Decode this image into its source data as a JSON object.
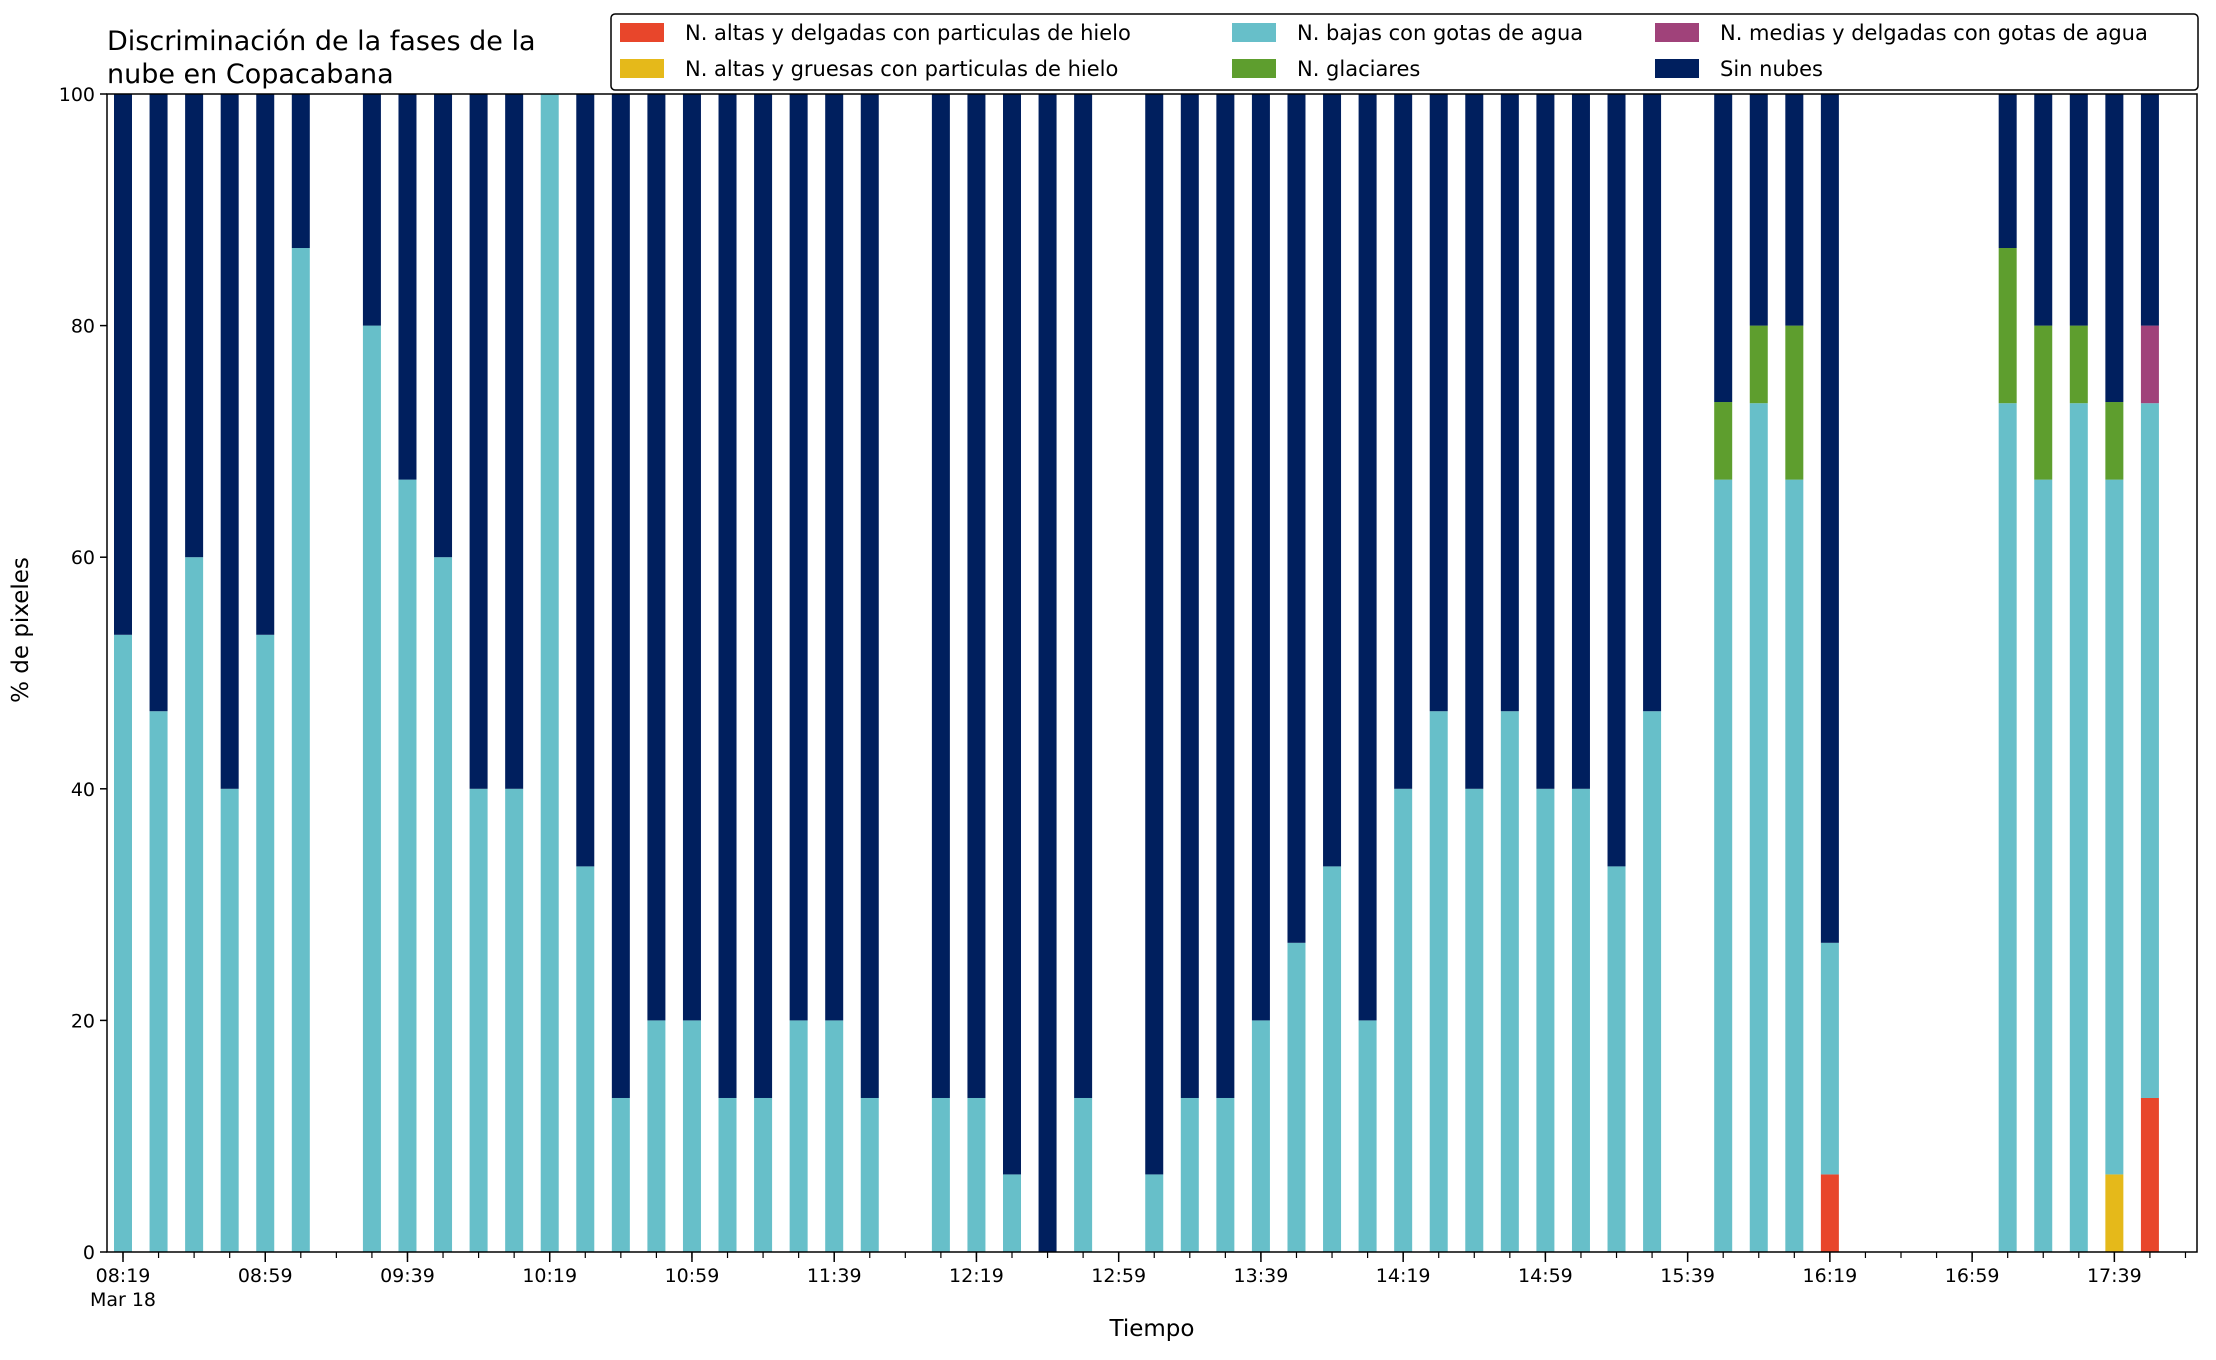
{
  "chart_data": {
    "type": "bar",
    "stacked": true,
    "title": "Discriminación de la fases de la\nnube en Copacabana",
    "xlabel": "Tiempo",
    "ylabel": "% de pixeles",
    "ylim": [
      0,
      100
    ],
    "yticks": [
      0,
      20,
      40,
      60,
      80,
      100
    ],
    "x_tick_labels": [
      "08:19",
      "08:59",
      "09:39",
      "10:19",
      "10:59",
      "11:39",
      "12:19",
      "12:59",
      "13:39",
      "14:19",
      "14:59",
      "15:39",
      "16:19",
      "16:59",
      "17:39"
    ],
    "x_date_label": "Mar 18",
    "x_start": "08:19",
    "x_end": "17:59",
    "bar_interval_minutes": 10,
    "legend_position": "top-right",
    "colors": {
      "hielo_delgadas": "#e8462b",
      "hielo_gruesas": "#e5b91a",
      "gotas_bajas": "#67bfc9",
      "glaciares": "#5e9e2e",
      "gotas_medias": "#a0427a",
      "sin_nubes": "#001f5e"
    },
    "legend": [
      {
        "key": "hielo_delgadas",
        "label": "N. altas y delgadas con particulas de hielo"
      },
      {
        "key": "hielo_gruesas",
        "label": "N. altas y gruesas con particulas de hielo"
      },
      {
        "key": "gotas_bajas",
        "label": "N. bajas con gotas de agua"
      },
      {
        "key": "glaciares",
        "label": "N. glaciares"
      },
      {
        "key": "gotas_medias",
        "label": "N. medias y delgadas con gotas de agua"
      },
      {
        "key": "sin_nubes",
        "label": "Sin nubes"
      }
    ],
    "series_order": [
      "hielo_delgadas",
      "hielo_gruesas",
      "gotas_bajas",
      "glaciares",
      "gotas_medias",
      "sin_nubes"
    ],
    "bars": [
      {
        "time": "08:19",
        "gotas_bajas": 53.3,
        "sin_nubes": 46.7
      },
      {
        "time": "08:29",
        "gotas_bajas": 46.7,
        "sin_nubes": 53.3
      },
      {
        "time": "08:39",
        "gotas_bajas": 60,
        "sin_nubes": 40
      },
      {
        "time": "08:49",
        "gotas_bajas": 40,
        "sin_nubes": 60
      },
      {
        "time": "08:59",
        "gotas_bajas": 53.3,
        "sin_nubes": 46.7
      },
      {
        "time": "09:09",
        "gotas_bajas": 86.7,
        "sin_nubes": 13.3
      },
      {
        "time": "09:29",
        "gotas_bajas": 80,
        "sin_nubes": 20
      },
      {
        "time": "09:39",
        "gotas_bajas": 66.7,
        "sin_nubes": 33.3
      },
      {
        "time": "09:49",
        "gotas_bajas": 60,
        "sin_nubes": 40
      },
      {
        "time": "09:59",
        "gotas_bajas": 40,
        "sin_nubes": 60
      },
      {
        "time": "10:09",
        "gotas_bajas": 40,
        "sin_nubes": 60
      },
      {
        "time": "10:19",
        "gotas_bajas": 100,
        "sin_nubes": 0
      },
      {
        "time": "10:29",
        "gotas_bajas": 33.3,
        "sin_nubes": 66.7
      },
      {
        "time": "10:39",
        "gotas_bajas": 13.3,
        "sin_nubes": 86.7
      },
      {
        "time": "10:49",
        "gotas_bajas": 20,
        "sin_nubes": 80
      },
      {
        "time": "10:59",
        "gotas_bajas": 20,
        "sin_nubes": 80
      },
      {
        "time": "11:09",
        "gotas_bajas": 13.3,
        "sin_nubes": 86.7
      },
      {
        "time": "11:19",
        "gotas_bajas": 13.3,
        "sin_nubes": 86.7
      },
      {
        "time": "11:29",
        "gotas_bajas": 20,
        "sin_nubes": 80
      },
      {
        "time": "11:39",
        "gotas_bajas": 20,
        "sin_nubes": 80
      },
      {
        "time": "11:49",
        "gotas_bajas": 13.3,
        "sin_nubes": 86.7
      },
      {
        "time": "12:09",
        "gotas_bajas": 13.3,
        "sin_nubes": 86.7
      },
      {
        "time": "12:19",
        "gotas_bajas": 13.3,
        "sin_nubes": 86.7
      },
      {
        "time": "12:29",
        "gotas_bajas": 6.7,
        "sin_nubes": 93.3
      },
      {
        "time": "12:39",
        "gotas_bajas": 0,
        "sin_nubes": 100
      },
      {
        "time": "12:49",
        "gotas_bajas": 13.3,
        "sin_nubes": 86.7
      },
      {
        "time": "13:09",
        "gotas_bajas": 6.7,
        "sin_nubes": 93.3
      },
      {
        "time": "13:19",
        "gotas_bajas": 13.3,
        "sin_nubes": 86.7
      },
      {
        "time": "13:29",
        "gotas_bajas": 13.3,
        "sin_nubes": 86.7
      },
      {
        "time": "13:39",
        "gotas_bajas": 20,
        "sin_nubes": 80
      },
      {
        "time": "13:49",
        "gotas_bajas": 26.7,
        "sin_nubes": 73.3
      },
      {
        "time": "13:59",
        "gotas_bajas": 33.3,
        "sin_nubes": 66.7
      },
      {
        "time": "14:09",
        "gotas_bajas": 20,
        "sin_nubes": 80
      },
      {
        "time": "14:19",
        "gotas_bajas": 40,
        "sin_nubes": 60
      },
      {
        "time": "14:29",
        "gotas_bajas": 46.7,
        "sin_nubes": 53.3
      },
      {
        "time": "14:39",
        "gotas_bajas": 40,
        "sin_nubes": 60
      },
      {
        "time": "14:49",
        "gotas_bajas": 46.7,
        "sin_nubes": 53.3
      },
      {
        "time": "14:59",
        "gotas_bajas": 40,
        "sin_nubes": 60
      },
      {
        "time": "15:09",
        "gotas_bajas": 40,
        "sin_nubes": 60
      },
      {
        "time": "15:19",
        "gotas_bajas": 33.3,
        "sin_nubes": 66.7
      },
      {
        "time": "15:29",
        "gotas_bajas": 46.7,
        "sin_nubes": 53.3
      },
      {
        "time": "15:49",
        "gotas_bajas": 66.7,
        "glaciares": 6.7,
        "sin_nubes": 26.6
      },
      {
        "time": "15:59",
        "gotas_bajas": 73.3,
        "glaciares": 6.7,
        "sin_nubes": 20
      },
      {
        "time": "16:09",
        "gotas_bajas": 66.7,
        "glaciares": 13.3,
        "sin_nubes": 20
      },
      {
        "time": "16:19",
        "hielo_delgadas": 6.7,
        "gotas_bajas": 20,
        "sin_nubes": 73.3
      },
      {
        "time": "17:09",
        "gotas_bajas": 73.3,
        "glaciares": 13.4,
        "sin_nubes": 13.3
      },
      {
        "time": "17:19",
        "gotas_bajas": 66.7,
        "glaciares": 13.3,
        "sin_nubes": 20
      },
      {
        "time": "17:29",
        "gotas_bajas": 73.3,
        "glaciares": 6.7,
        "sin_nubes": 20
      },
      {
        "time": "17:39",
        "hielo_gruesas": 6.7,
        "gotas_bajas": 60,
        "glaciares": 6.7,
        "sin_nubes": 26.6
      },
      {
        "time": "17:49",
        "hielo_delgadas": 13.3,
        "gotas_bajas": 60,
        "gotas_medias": 6.7,
        "sin_nubes": 20
      }
    ]
  }
}
